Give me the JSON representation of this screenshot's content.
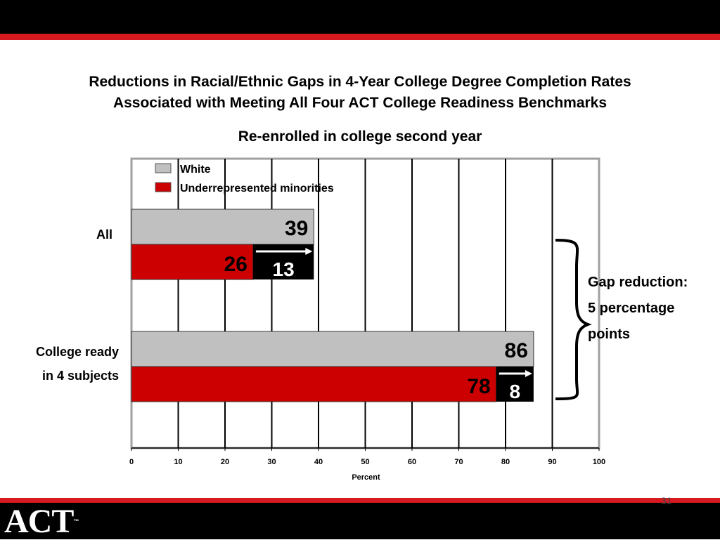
{
  "header": {
    "title_line1": "Reductions in Racial/Ethnic Gaps in 4-Year College Degree Completion Rates",
    "title_line2": "Associated with Meeting All Four ACT College Readiness Benchmarks",
    "subtitle": "Re-enrolled in college second year"
  },
  "chart_data": {
    "type": "bar",
    "orientation": "horizontal",
    "title": "Re-enrolled in college second year",
    "xlabel": "Percent",
    "xlim": [
      0,
      100
    ],
    "x_ticks": [
      0,
      10,
      20,
      30,
      40,
      50,
      60,
      70,
      80,
      90,
      100
    ],
    "grid": true,
    "legend_position": "top-left",
    "categories": [
      {
        "line1": "All",
        "line2": ""
      },
      {
        "line1": "College ready",
        "line2": "in 4 subjects"
      }
    ],
    "series": [
      {
        "name": "White",
        "values": [
          39,
          86
        ],
        "color": "#c0c0c0"
      },
      {
        "name": "Underrepresented minorities",
        "values": [
          26,
          78
        ],
        "color": "#cc0000"
      }
    ],
    "gaps": [
      13,
      8
    ]
  },
  "annotation": {
    "line1": "Gap reduction:",
    "line2": "5 percentage",
    "line3": "points"
  },
  "footer": {
    "page_number": "31",
    "logo_text": "ACT",
    "logo_mark": "™"
  }
}
